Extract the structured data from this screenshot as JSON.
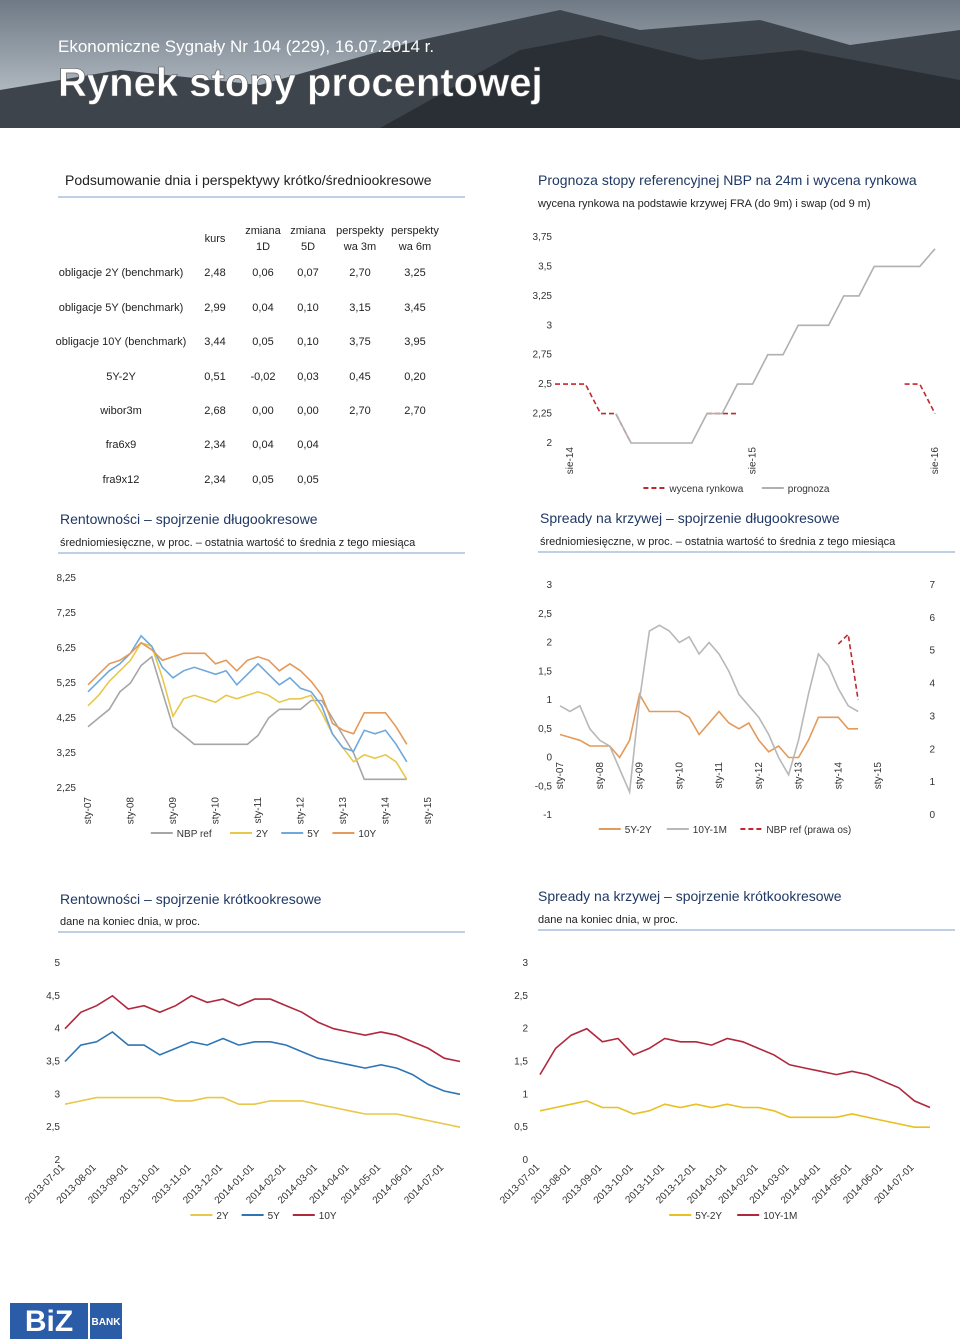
{
  "header": {
    "subtitle": "Ekonomiczne Sygnały Nr 104 (229), 16.07.2014 r.",
    "title": "Rynek stopy procentowej"
  },
  "table": {
    "title": "Podsumowanie dnia i perspektywy krótko/średniookresowe",
    "columns": [
      [
        "kurs"
      ],
      [
        "zmiana",
        "1D"
      ],
      [
        "zmiana",
        "5D"
      ],
      [
        "perspekty",
        "wa 3m"
      ],
      [
        "perspekty",
        "wa 6m"
      ]
    ],
    "rows": [
      {
        "label": "obligacje 2Y (benchmark)",
        "cells": [
          "2,48",
          "0,06",
          "0,07",
          "2,70",
          "3,25"
        ]
      },
      {
        "label": "obligacje 5Y (benchmark)",
        "cells": [
          "2,99",
          "0,04",
          "0,10",
          "3,15",
          "3,45"
        ]
      },
      {
        "label": "obligacje 10Y (benchmark)",
        "cells": [
          "3,44",
          "0,05",
          "0,10",
          "3,75",
          "3,95"
        ]
      },
      {
        "label": "5Y-2Y",
        "cells": [
          "0,51",
          "-0,02",
          "0,03",
          "0,45",
          "0,20"
        ]
      },
      {
        "label": "wibor3m",
        "cells": [
          "2,68",
          "0,00",
          "0,00",
          "2,70",
          "2,70"
        ]
      },
      {
        "label": "fra6x9",
        "cells": [
          "2,34",
          "0,04",
          "0,04"
        ]
      },
      {
        "label": "fra9x12",
        "cells": [
          "2,34",
          "0,05",
          "0,05"
        ]
      }
    ]
  },
  "charts": [
    {
      "type": "line",
      "title": "Prognoza stopy referencyjnej NBP na 24m i wycena rynkowa",
      "subtitle": "wycena rynkowa na podstawie krzywej FRA (do 9m) i swap (od 9 m)",
      "categories": [
        null,
        "sie-14",
        null,
        null,
        null,
        null,
        null,
        null,
        null,
        null,
        null,
        null,
        null,
        "sie-15",
        null,
        null,
        null,
        null,
        null,
        null,
        null,
        null,
        null,
        null,
        null,
        "sie-16"
      ],
      "ylim": [
        2,
        3.75
      ],
      "yticks": [
        2,
        {
          "value": 2.25,
          "label": "2,25"
        },
        {
          "value": 2.5,
          "label": "2,5"
        },
        {
          "value": 2.75,
          "label": "2,75"
        },
        3,
        {
          "value": 3.25,
          "label": "3,25"
        },
        {
          "value": 3.5,
          "label": "3,5"
        },
        {
          "value": 3.75,
          "label": "3,75"
        }
      ],
      "series": [
        {
          "name": "wycena rynkowa",
          "color": "#c0282d",
          "dashed": true,
          "values": [
            2.5,
            2.5,
            2.5,
            2.25,
            2.25,
            2.0,
            null,
            null,
            null,
            null,
            2.25,
            2.25,
            2.25,
            null,
            null,
            null,
            null,
            null,
            null,
            null,
            null,
            null,
            null,
            2.5,
            2.5,
            2.25
          ]
        },
        {
          "name": "prognoza",
          "color": "#b0b0b0",
          "dashed": false,
          "values": [
            null,
            null,
            null,
            null,
            2.25,
            2.0,
            2.0,
            2.0,
            2.0,
            2.0,
            2.25,
            2.25,
            2.5,
            2.5,
            2.75,
            2.75,
            3.0,
            3.0,
            3.0,
            3.25,
            3.25,
            3.5,
            3.5,
            3.5,
            3.5,
            3.65
          ]
        }
      ]
    },
    {
      "type": "line",
      "title": "Rentowności – spojrzenie długookresowe",
      "subtitle": "średniomiesięczne, w proc. – ostatnia wartość to średnia z tego miesiąca",
      "categories": [
        "sty-07",
        null,
        null,
        null,
        "sty-08",
        null,
        null,
        null,
        "sty-09",
        null,
        null,
        null,
        "sty-10",
        null,
        null,
        null,
        "sty-11",
        null,
        null,
        null,
        "sty-12",
        null,
        null,
        null,
        "sty-13",
        null,
        null,
        null,
        "sty-14",
        null,
        null,
        null,
        "sty-15"
      ],
      "ylim": [
        2.25,
        8.25
      ],
      "yticks": [
        {
          "value": 2.25,
          "label": "2,25"
        },
        {
          "value": 3.25,
          "label": "3,25"
        },
        {
          "value": 4.25,
          "label": "4,25"
        },
        {
          "value": 5.25,
          "label": "5,25"
        },
        {
          "value": 6.25,
          "label": "6,25"
        },
        {
          "value": 7.25,
          "label": "7,25"
        },
        {
          "value": 8.25,
          "label": "8,25"
        }
      ],
      "series": [
        {
          "name": "NBP ref",
          "color": "#a6a6a6",
          "dashed": false,
          "values": [
            4.0,
            4.25,
            4.5,
            5.0,
            5.25,
            5.75,
            6.0,
            5.0,
            4.0,
            3.75,
            3.5,
            3.5,
            3.5,
            3.5,
            3.5,
            3.5,
            3.75,
            4.25,
            4.5,
            4.5,
            4.5,
            4.75,
            4.75,
            4.25,
            3.75,
            3.25,
            2.5,
            2.5,
            2.5,
            2.5,
            2.5,
            null,
            null
          ]
        },
        {
          "name": "2Y",
          "color": "#e8c84a",
          "dashed": false,
          "values": [
            4.6,
            4.9,
            5.3,
            5.6,
            5.9,
            6.4,
            6.3,
            5.4,
            4.3,
            4.8,
            4.9,
            4.8,
            4.7,
            4.9,
            4.8,
            4.9,
            5.0,
            4.9,
            4.7,
            4.8,
            4.8,
            4.9,
            4.4,
            3.8,
            3.4,
            3.0,
            3.2,
            3.1,
            3.2,
            3.0,
            2.5,
            null,
            null
          ]
        },
        {
          "name": "5Y",
          "color": "#6fa8dc",
          "dashed": false,
          "values": [
            5.0,
            5.3,
            5.6,
            5.8,
            6.1,
            6.6,
            6.3,
            5.7,
            5.4,
            5.6,
            5.7,
            5.6,
            5.5,
            5.6,
            5.2,
            5.5,
            5.8,
            5.5,
            5.2,
            5.4,
            5.1,
            5.0,
            4.6,
            3.8,
            3.4,
            3.3,
            3.9,
            3.8,
            3.9,
            3.5,
            3.0,
            null,
            null
          ]
        },
        {
          "name": "10Y",
          "color": "#e39a5a",
          "dashed": false,
          "values": [
            5.2,
            5.5,
            5.8,
            5.9,
            6.1,
            6.4,
            6.2,
            5.9,
            6.0,
            6.1,
            6.1,
            6.1,
            5.8,
            5.9,
            5.6,
            5.9,
            6.0,
            5.9,
            5.6,
            5.8,
            5.6,
            5.3,
            4.9,
            4.1,
            3.9,
            3.8,
            4.4,
            4.4,
            4.4,
            4.0,
            3.5,
            null,
            null
          ]
        }
      ]
    },
    {
      "type": "line",
      "title": "Spready na krzywej – spojrzenie długookresowe",
      "subtitle": "średniomiesięczne, w proc. – ostatnia wartość to średnia z tego miesiąca",
      "categories": [
        "sty-07",
        null,
        null,
        null,
        "sty-08",
        null,
        null,
        null,
        "sty-09",
        null,
        null,
        null,
        "sty-10",
        null,
        null,
        null,
        "sty-11",
        null,
        null,
        null,
        "sty-12",
        null,
        null,
        null,
        "sty-13",
        null,
        null,
        null,
        "sty-14",
        null,
        null,
        null,
        "sty-15"
      ],
      "ylim": [
        -1,
        3
      ],
      "yticks": [
        -1,
        {
          "value": -0.5,
          "label": "-0,5"
        },
        0,
        {
          "value": 0.5,
          "label": "0,5"
        },
        1,
        {
          "value": 1.5,
          "label": "1,5"
        },
        2,
        {
          "value": 2.5,
          "label": "2,5"
        },
        3
      ],
      "y2lim": [
        0,
        7
      ],
      "y2ticks": [
        0,
        1,
        2,
        3,
        4,
        5,
        6,
        7
      ],
      "series": [
        {
          "name": "5Y-2Y",
          "color": "#e39a5a",
          "dashed": false,
          "values": [
            0.4,
            0.35,
            0.3,
            0.2,
            0.2,
            0.2,
            0.0,
            0.3,
            1.1,
            0.8,
            0.8,
            0.8,
            0.8,
            0.7,
            0.4,
            0.6,
            0.8,
            0.6,
            0.5,
            0.6,
            0.3,
            0.1,
            0.2,
            0.0,
            0.0,
            0.3,
            0.7,
            0.7,
            0.7,
            0.5,
            0.5,
            null,
            null
          ]
        },
        {
          "name": "10Y-1M",
          "color": "#b8b8b8",
          "dashed": false,
          "values": [
            0.9,
            0.8,
            0.9,
            0.5,
            0.3,
            0.2,
            -0.2,
            -0.6,
            1.0,
            2.2,
            2.3,
            2.2,
            2.0,
            2.1,
            1.8,
            2.0,
            1.8,
            1.5,
            1.1,
            0.9,
            0.7,
            0.4,
            0.0,
            -0.3,
            0.3,
            1.1,
            1.8,
            1.6,
            1.2,
            0.9,
            0.8,
            null,
            null
          ]
        },
        {
          "name": "NBP ref (prawa os)",
          "color": "#c0282d",
          "dashed": true,
          "axis": "y2",
          "values": [
            null,
            null,
            null,
            null,
            null,
            null,
            null,
            null,
            null,
            null,
            null,
            null,
            null,
            null,
            null,
            null,
            null,
            null,
            null,
            null,
            null,
            null,
            null,
            null,
            null,
            null,
            null,
            null,
            5.2,
            5.5,
            3.5,
            null,
            null
          ]
        }
      ]
    },
    {
      "type": "line",
      "title": "Rentowności – spojrzenie krótkookresowe",
      "subtitle": "dane na koniec dnia, w proc.",
      "categories": [
        "2013-07-01",
        null,
        "2013-08-01",
        null,
        "2013-09-01",
        null,
        "2013-10-01",
        null,
        "2013-11-01",
        null,
        "2013-12-01",
        null,
        "2014-01-01",
        null,
        "2014-02-01",
        null,
        "2014-03-01",
        null,
        "2014-04-01",
        null,
        "2014-05-01",
        null,
        "2014-06-01",
        null,
        "2014-07-01",
        null
      ],
      "ylim": [
        2,
        5
      ],
      "yticks": [
        2,
        {
          "value": 2.5,
          "label": "2,5"
        },
        3,
        {
          "value": 3.5,
          "label": "3,5"
        },
        4,
        {
          "value": 4.5,
          "label": "4,5"
        },
        5
      ],
      "series": [
        {
          "name": "2Y",
          "color": "#e8c84a",
          "dashed": false,
          "values": [
            2.85,
            2.9,
            2.95,
            2.95,
            2.95,
            2.95,
            2.95,
            2.9,
            2.9,
            2.95,
            2.95,
            2.85,
            2.85,
            2.9,
            2.9,
            2.9,
            2.85,
            2.8,
            2.75,
            2.7,
            2.7,
            2.7,
            2.65,
            2.6,
            2.55,
            2.5
          ]
        },
        {
          "name": "5Y",
          "color": "#2e75b6",
          "dashed": false,
          "values": [
            3.5,
            3.75,
            3.8,
            3.95,
            3.75,
            3.75,
            3.6,
            3.7,
            3.8,
            3.75,
            3.85,
            3.75,
            3.8,
            3.8,
            3.75,
            3.65,
            3.55,
            3.5,
            3.45,
            3.4,
            3.45,
            3.4,
            3.3,
            3.15,
            3.05,
            3.0
          ]
        },
        {
          "name": "10Y",
          "color": "#b0283d",
          "dashed": false,
          "values": [
            4.0,
            4.25,
            4.35,
            4.5,
            4.3,
            4.35,
            4.25,
            4.35,
            4.5,
            4.4,
            4.45,
            4.35,
            4.45,
            4.45,
            4.35,
            4.25,
            4.1,
            4.0,
            3.95,
            3.9,
            3.95,
            3.9,
            3.8,
            3.7,
            3.55,
            3.5
          ]
        }
      ]
    },
    {
      "type": "line",
      "title": "Spready na krzywej – spojrzenie krótkookresowe",
      "subtitle": "dane na koniec dnia, w proc.",
      "categories": [
        "2013-07-01",
        null,
        "2013-08-01",
        null,
        "2013-09-01",
        null,
        "2013-10-01",
        null,
        "2013-11-01",
        null,
        "2013-12-01",
        null,
        "2014-01-01",
        null,
        "2014-02-01",
        null,
        "2014-03-01",
        null,
        "2014-04-01",
        null,
        "2014-05-01",
        null,
        "2014-06-01",
        null,
        "2014-07-01",
        null
      ],
      "ylim": [
        0,
        3
      ],
      "yticks": [
        0,
        {
          "value": 0.5,
          "label": "0,5"
        },
        1,
        {
          "value": 1.5,
          "label": "1,5"
        },
        2,
        {
          "value": 2.5,
          "label": "2,5"
        },
        3
      ],
      "series": [
        {
          "name": "5Y-2Y",
          "color": "#e8c020",
          "dashed": false,
          "values": [
            0.75,
            0.8,
            0.85,
            0.9,
            0.8,
            0.8,
            0.7,
            0.75,
            0.85,
            0.8,
            0.85,
            0.8,
            0.85,
            0.8,
            0.8,
            0.75,
            0.65,
            0.65,
            0.65,
            0.65,
            0.7,
            0.65,
            0.6,
            0.55,
            0.5,
            0.5
          ]
        },
        {
          "name": "10Y-1M",
          "color": "#b0283d",
          "dashed": false,
          "values": [
            1.3,
            1.7,
            1.9,
            2.0,
            1.8,
            1.85,
            1.6,
            1.7,
            1.85,
            1.8,
            1.8,
            1.75,
            1.85,
            1.8,
            1.7,
            1.6,
            1.45,
            1.4,
            1.35,
            1.3,
            1.35,
            1.3,
            1.2,
            1.1,
            0.9,
            0.8
          ]
        }
      ]
    }
  ],
  "footer": {
    "logo": "BiZ",
    "bank": "BANK"
  }
}
